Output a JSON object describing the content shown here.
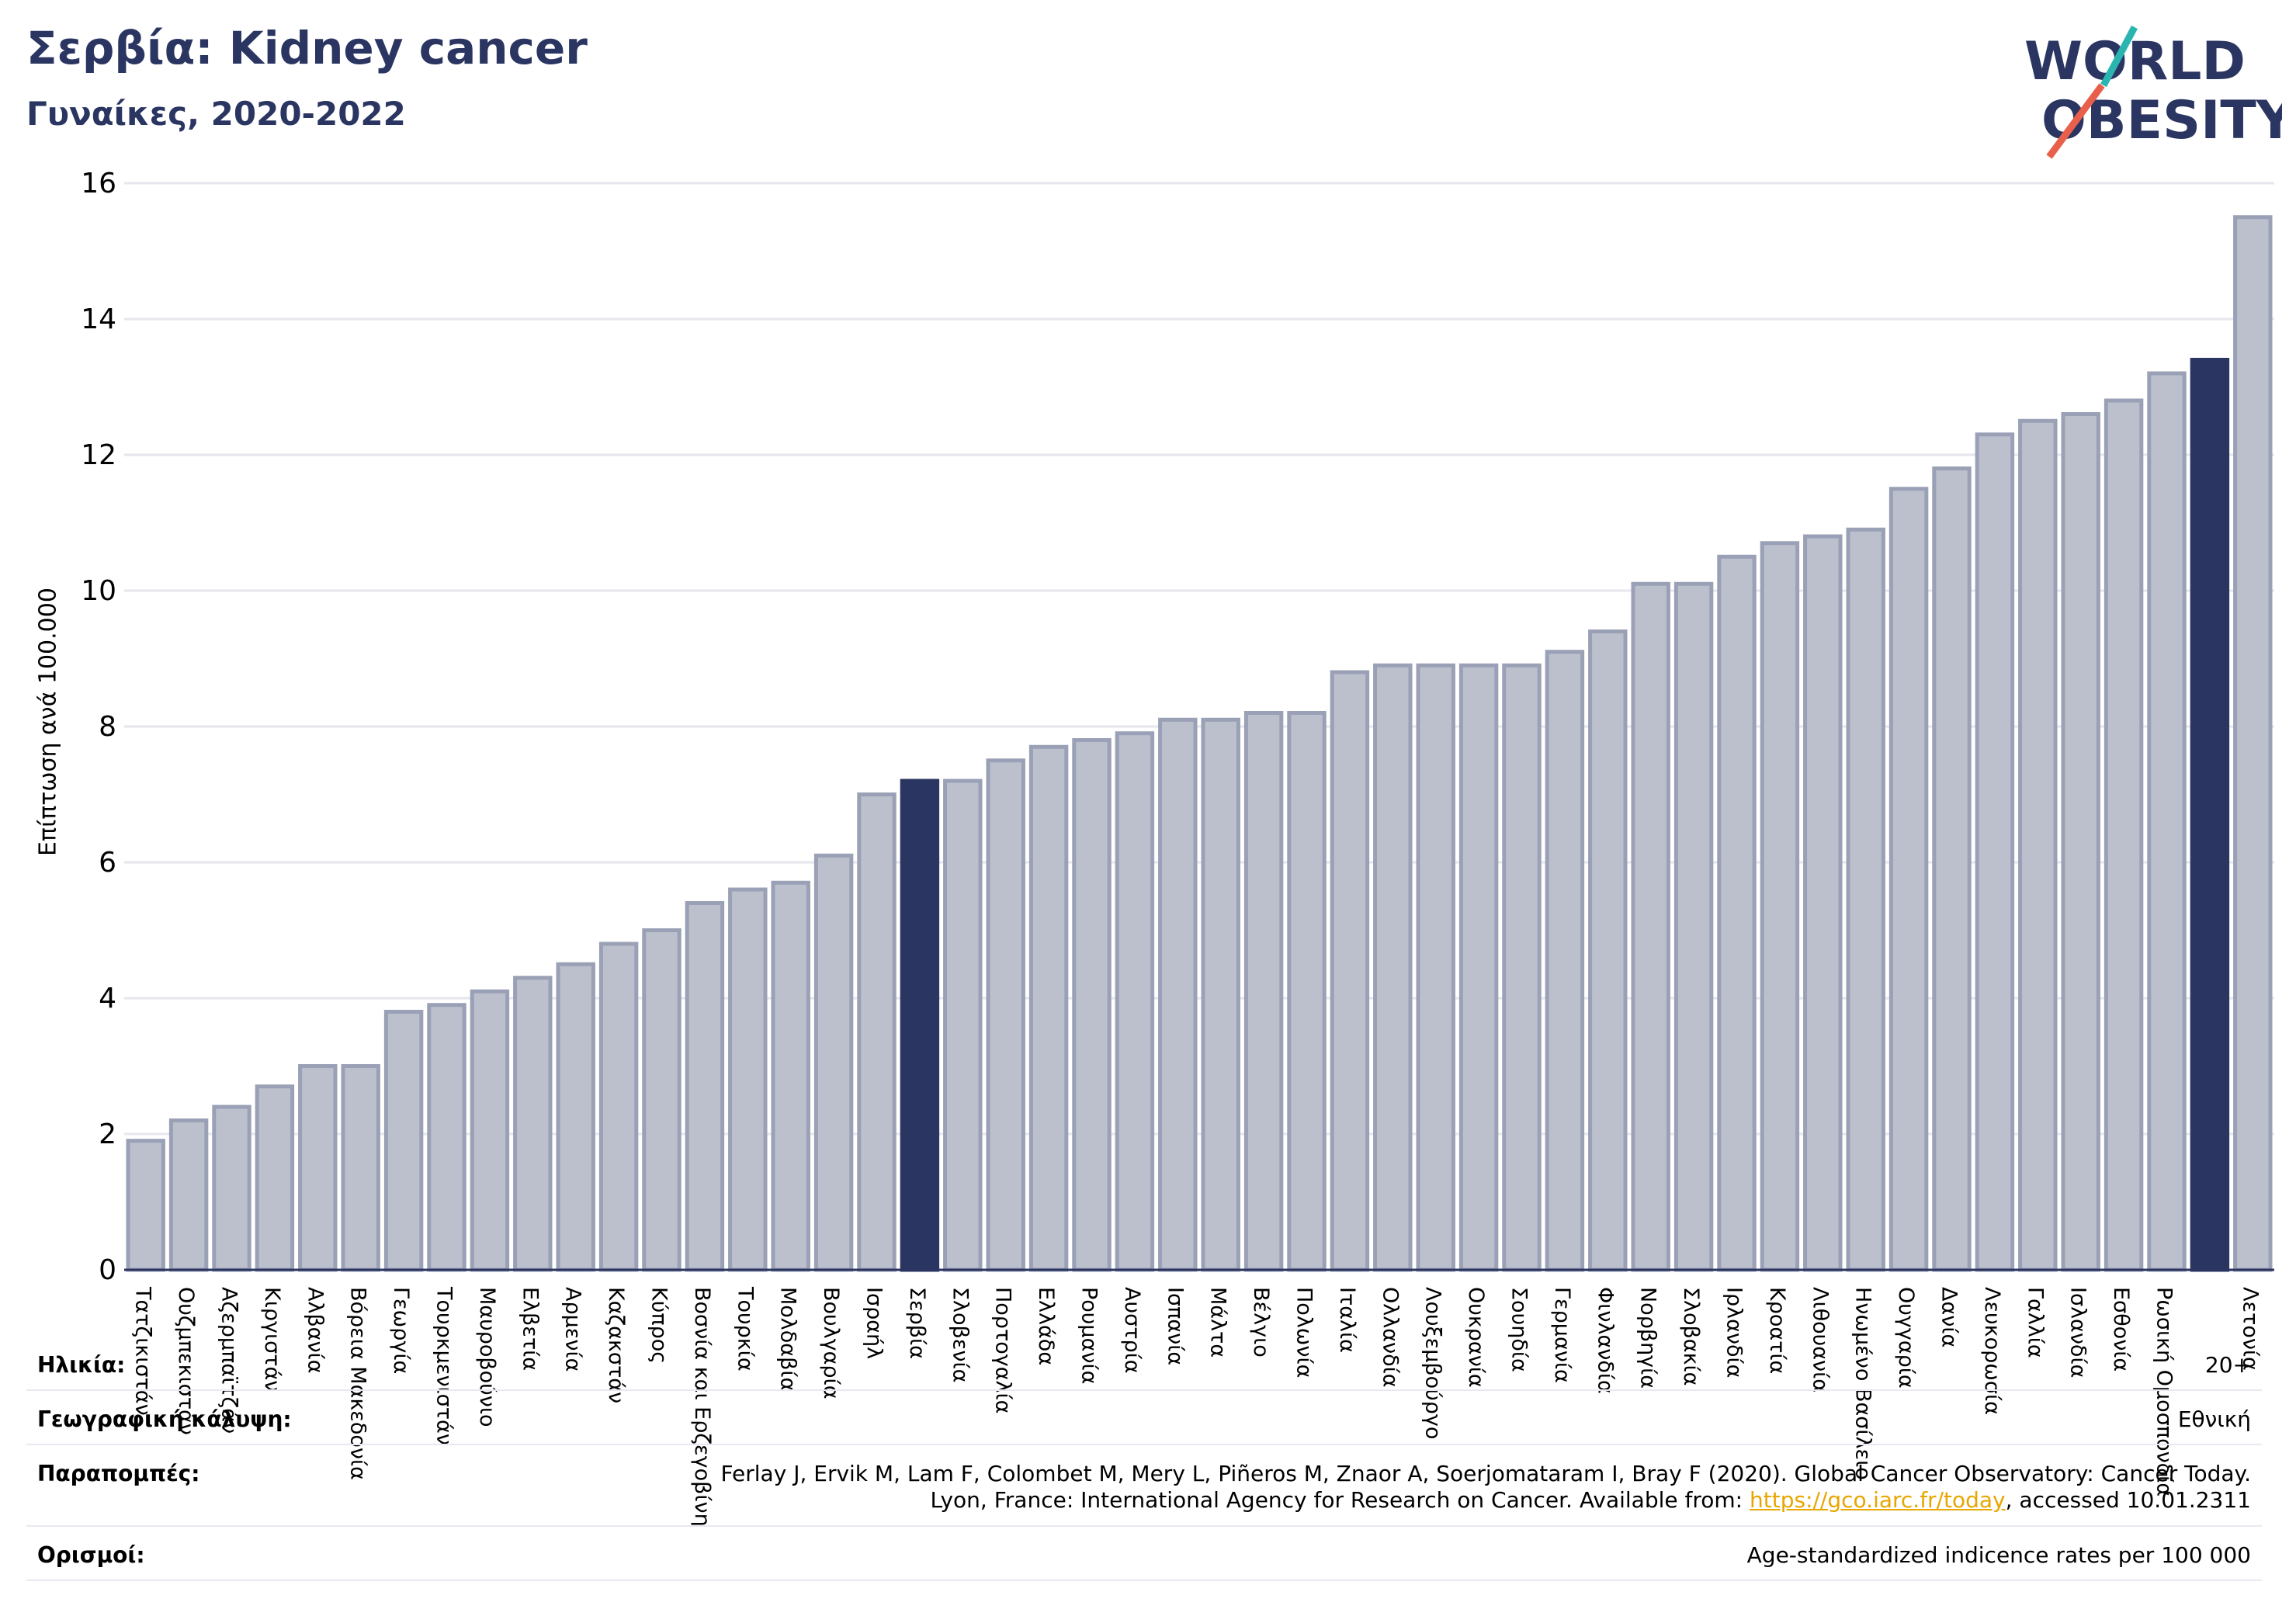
{
  "title": "Σερβία: Kidney cancer",
  "subtitle": "Γυναίκες, 2020-2022",
  "logo": {
    "line1": "WORLD",
    "line2": "OBESITY"
  },
  "colors": {
    "highlight": "#2a3561",
    "bar": "#bcc0cd",
    "bar_edge": "#9aa0b5",
    "text": "#2a3561",
    "logo_teal": "#2bb5b0",
    "logo_red": "#e8604c"
  },
  "chart_data": {
    "type": "bar",
    "ylabel": "Επίπτωση ανά 100.000",
    "ylim": [
      0,
      16
    ],
    "yticks": [
      "0",
      "2",
      "4",
      "6",
      "8",
      "10",
      "12",
      "14",
      "16"
    ],
    "grid": true,
    "categories": [
      "Τατζικιστάν",
      "Ουζμπεκιστάν",
      "Αζερμπαϊτζάν",
      "Κιργιστάν",
      "Αλβανία",
      "Βόρεια Μακεδονία",
      "Γεωργία",
      "Τουρκμενιστάν",
      "Μαυροβούνιο",
      "Ελβετία",
      "Αρμενία",
      "Καζακστάν",
      "Κύπρος",
      "Βοσνία και Ερζεγοβίνη",
      "Τουρκία",
      "Μολδαβία",
      "Βουλγαρία",
      "Ισραήλ",
      "Σερβία",
      "Σλοβενία",
      "Πορτογαλία",
      "Ελλάδα",
      "Ρουμανία",
      "Αυστρία",
      "Ισπανία",
      "Μάλτα",
      "Βέλγιο",
      "Πολωνία",
      "Ιταλία",
      "Ολλανδία",
      "Λουξεμβούργο",
      "Ουκρανία",
      "Σουηδία",
      "Γερμανία",
      "Φινλανδία",
      "Νορβηγία",
      "Σλοβακία",
      "Ιρλανδία",
      "Κροατία",
      "Λιθουανία",
      "Ηνωμένο Βασίλειο",
      "Ουγγαρία",
      "Δανία",
      "Λευκορωσία",
      "Γαλλία",
      "Ισλανδία",
      "Εσθονία",
      "Ρωσική Ομοσπονδία",
      "",
      "Λετονία"
    ],
    "values": [
      1.9,
      2.2,
      2.4,
      2.7,
      3.0,
      3.0,
      3.8,
      3.9,
      4.1,
      4.3,
      4.5,
      4.8,
      5.0,
      5.4,
      5.6,
      5.7,
      6.1,
      7.0,
      7.2,
      7.2,
      7.5,
      7.7,
      7.8,
      7.9,
      8.1,
      8.1,
      8.2,
      8.2,
      8.8,
      8.9,
      8.9,
      8.9,
      8.9,
      9.1,
      9.4,
      10.1,
      10.1,
      10.5,
      10.7,
      10.8,
      10.9,
      11.5,
      11.8,
      12.3,
      12.5,
      12.6,
      12.8,
      13.2,
      13.4,
      15.5
    ],
    "highlight": [
      18,
      48
    ]
  },
  "meta": {
    "age_key": "Ηλικία:",
    "age_val": "20+",
    "geo_key": "Γεωγραφική κάλυψη:",
    "geo_val": "Εθνική",
    "ref_key": "Παραπομπές:",
    "ref_line1": "Ferlay J, Ervik M, Lam F, Colombet M, Mery L, Piñeros M, Znaor A, Soerjomataram I, Bray F (2020). Global Cancer Observatory: Cancer Today.",
    "ref_line2_pre": "Lyon, France: International Agency for Research on Cancer. Available from: ",
    "ref_link": "https://gco.iarc.fr/today",
    "ref_line2_post": ", accessed 10.01.2311",
    "def_key": "Ορισμοί:",
    "def_val": "Age-standardized indicence rates per 100 000"
  }
}
